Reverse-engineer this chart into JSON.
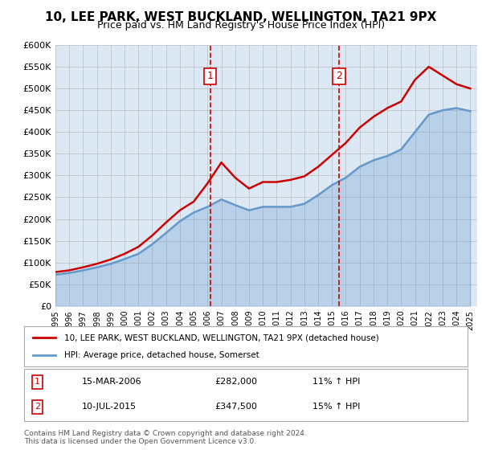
{
  "title": "10, LEE PARK, WEST BUCKLAND, WELLINGTON, TA21 9PX",
  "subtitle": "Price paid vs. HM Land Registry's House Price Index (HPI)",
  "ylabel_ticks": [
    "£0",
    "£50K",
    "£100K",
    "£150K",
    "£200K",
    "£250K",
    "£300K",
    "£350K",
    "£400K",
    "£450K",
    "£500K",
    "£550K",
    "£600K"
  ],
  "ylim": [
    0,
    600000
  ],
  "ytick_vals": [
    0,
    50000,
    100000,
    150000,
    200000,
    250000,
    300000,
    350000,
    400000,
    450000,
    500000,
    550000,
    600000
  ],
  "xmin": 1995.0,
  "xmax": 2025.5,
  "background_color": "#dce9f5",
  "plot_bg": "#dce9f5",
  "red_line_color": "#cc0000",
  "blue_line_color": "#6699cc",
  "vline_color": "#cc0000",
  "vline1_x": 2006.2,
  "vline2_x": 2015.5,
  "transaction1": {
    "date": "15-MAR-2006",
    "price": 282000,
    "note": "11% ↑ HPI"
  },
  "transaction2": {
    "date": "10-JUL-2015",
    "price": 347500,
    "note": "15% ↑ HPI"
  },
  "legend_label_red": "10, LEE PARK, WEST BUCKLAND, WELLINGTON, TA21 9PX (detached house)",
  "legend_label_blue": "HPI: Average price, detached house, Somerset",
  "footer": "Contains HM Land Registry data © Crown copyright and database right 2024.\nThis data is licensed under the Open Government Licence v3.0.",
  "hpi_years": [
    1995,
    1996,
    1997,
    1998,
    1999,
    2000,
    2001,
    2002,
    2003,
    2004,
    2005,
    2006,
    2007,
    2008,
    2009,
    2010,
    2011,
    2012,
    2013,
    2014,
    2015,
    2016,
    2017,
    2018,
    2019,
    2020,
    2021,
    2022,
    2023,
    2024,
    2025
  ],
  "hpi_values": [
    72000,
    76000,
    82000,
    89000,
    97000,
    108000,
    120000,
    142000,
    168000,
    195000,
    215000,
    228000,
    245000,
    232000,
    220000,
    228000,
    228000,
    228000,
    235000,
    255000,
    278000,
    295000,
    320000,
    335000,
    345000,
    360000,
    400000,
    440000,
    450000,
    455000,
    448000
  ],
  "price_years": [
    1995,
    1996,
    1997,
    1998,
    1999,
    2000,
    2001,
    2002,
    2003,
    2004,
    2005,
    2006,
    2007,
    2008,
    2009,
    2010,
    2011,
    2012,
    2013,
    2014,
    2015,
    2016,
    2017,
    2018,
    2019,
    2020,
    2021,
    2022,
    2023,
    2024,
    2025
  ],
  "price_values": [
    78000,
    82000,
    89000,
    97000,
    107000,
    120000,
    136000,
    162000,
    192000,
    220000,
    240000,
    282000,
    330000,
    295000,
    270000,
    285000,
    285000,
    290000,
    298000,
    320000,
    347500,
    375000,
    410000,
    435000,
    455000,
    470000,
    520000,
    550000,
    530000,
    510000,
    500000
  ]
}
